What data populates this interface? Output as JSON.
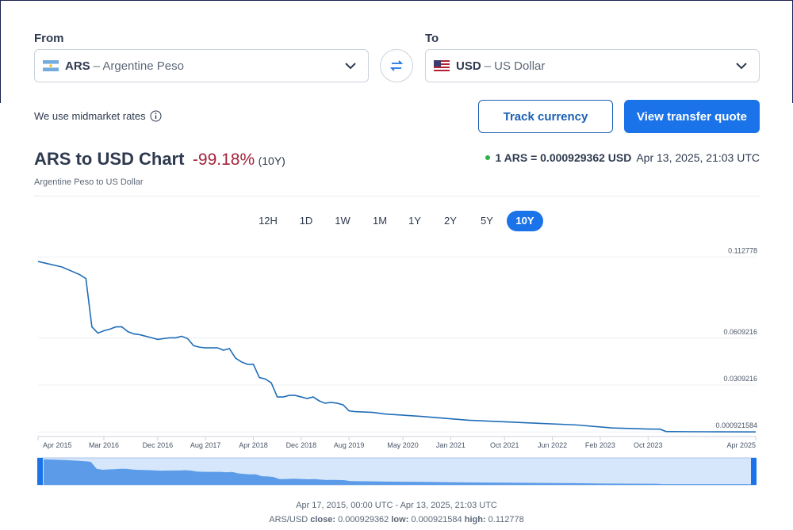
{
  "converter": {
    "from": {
      "label": "From",
      "code": "ARS",
      "name": "– Argentine Peso"
    },
    "to": {
      "label": "To",
      "code": "USD",
      "name": "– US Dollar"
    },
    "note": "We use midmarket rates",
    "track_button": "Track currency",
    "quote_button": "View transfer quote"
  },
  "header": {
    "title": "ARS to USD Chart",
    "change": "-99.18%",
    "period": "(10Y)",
    "subtitle": "Argentine Peso to US Dollar",
    "rate": "1 ARS = 0.000929362 USD",
    "timestamp": "Apr 13, 2025, 21:03 UTC"
  },
  "ranges": {
    "options": [
      "12H",
      "1D",
      "1W",
      "1M",
      "1Y",
      "2Y",
      "5Y",
      "10Y"
    ],
    "active": "10Y"
  },
  "chart_data": {
    "type": "line",
    "color": "#1f6db8",
    "area_color": "#5b9be8",
    "grid": true,
    "x": [
      "2015-04",
      "2015-08",
      "2015-11",
      "2015-12",
      "2016-01",
      "2016-02",
      "2016-03",
      "2016-04",
      "2016-05",
      "2016-06",
      "2016-07",
      "2016-08",
      "2016-09",
      "2016-10",
      "2016-11",
      "2016-12",
      "2017-01",
      "2017-02",
      "2017-03",
      "2017-04",
      "2017-05",
      "2017-06",
      "2017-07",
      "2017-08",
      "2017-09",
      "2017-10",
      "2017-11",
      "2017-12",
      "2018-01",
      "2018-02",
      "2018-03",
      "2018-04",
      "2018-05",
      "2018-06",
      "2018-07",
      "2018-08",
      "2018-09",
      "2018-10",
      "2018-11",
      "2018-12",
      "2019-01",
      "2019-02",
      "2019-03",
      "2019-04",
      "2019-05",
      "2019-06",
      "2019-07",
      "2019-08",
      "2019-09",
      "2019-12",
      "2020-02",
      "2020-04",
      "2020-08",
      "2021-04",
      "2021-10",
      "2022-04",
      "2022-10",
      "2023-04",
      "2023-10",
      "2023-12",
      "2024-01",
      "2024-04",
      "2024-10",
      "2025-04"
    ],
    "values": [
      0.1099,
      0.1064,
      0.1014,
      0.0989,
      0.0681,
      0.0641,
      0.0656,
      0.0666,
      0.0681,
      0.0681,
      0.0651,
      0.0636,
      0.0631,
      0.0621,
      0.0611,
      0.0601,
      0.0606,
      0.0611,
      0.0611,
      0.0621,
      0.0606,
      0.0561,
      0.0551,
      0.0547,
      0.0547,
      0.0547,
      0.0532,
      0.0542,
      0.0482,
      0.0457,
      0.0442,
      0.0442,
      0.0357,
      0.0348,
      0.0323,
      0.0233,
      0.0233,
      0.0243,
      0.0243,
      0.0233,
      0.0223,
      0.0233,
      0.0208,
      0.0193,
      0.0198,
      0.0193,
      0.0183,
      0.0144,
      0.0139,
      0.0134,
      0.0124,
      0.0119,
      0.0109,
      0.0084,
      0.0074,
      0.0064,
      0.0054,
      0.0035,
      0.0028,
      0.0027,
      0.0012,
      0.0011,
      0.001,
      0.00093
    ],
    "xlim": [
      "2015-04",
      "2025-04"
    ],
    "xticks": [
      {
        "value": "2015-04",
        "label": "Apr 2015"
      },
      {
        "value": "2016-03",
        "label": "Mar 2016"
      },
      {
        "value": "2016-12",
        "label": "Dec 2016"
      },
      {
        "value": "2017-08",
        "label": "Aug 2017"
      },
      {
        "value": "2018-04",
        "label": "Apr 2018"
      },
      {
        "value": "2018-12",
        "label": "Dec 2018"
      },
      {
        "value": "2019-08",
        "label": "Aug 2019"
      },
      {
        "value": "2020-05",
        "label": "May 2020"
      },
      {
        "value": "2021-01",
        "label": "Jan 2021"
      },
      {
        "value": "2021-10",
        "label": "Oct 2021"
      },
      {
        "value": "2022-06",
        "label": "Jun 2022"
      },
      {
        "value": "2023-02",
        "label": "Feb 2023"
      },
      {
        "value": "2023-10",
        "label": "Oct 2023"
      },
      {
        "value": "2025-04",
        "label": "Apr 2025"
      }
    ],
    "ylim": [
      -0.002,
      0.116
    ],
    "yticks": [
      0.112778,
      0.0609216,
      0.0309216,
      0.000921584
    ]
  },
  "footer": {
    "range": "Apr 17, 2015, 00:00 UTC - Apr 13, 2025, 21:03 UTC",
    "pair": "ARS/USD",
    "close_label": "close:",
    "close": "0.000929362",
    "low_label": "low:",
    "low": "0.000921584",
    "high_label": "high:",
    "high": "0.112778"
  }
}
